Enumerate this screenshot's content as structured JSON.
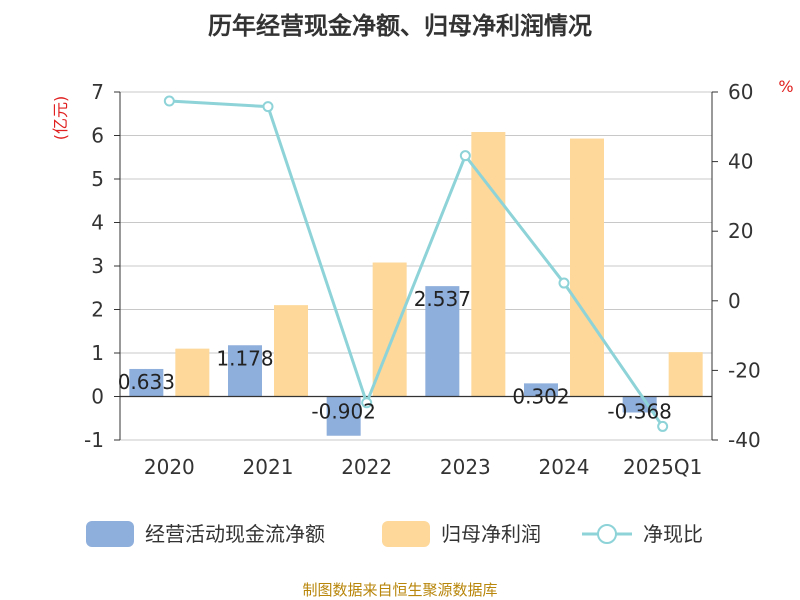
{
  "chart_data": {
    "type": "bar+line",
    "title": "历年经营现金净额、归母净利润情况",
    "categories": [
      "2020",
      "2021",
      "2022",
      "2023",
      "2024",
      "2025Q1"
    ],
    "left_axis": {
      "unit": "(亿元)",
      "ylim": [
        -1,
        7
      ],
      "ticks": [
        "-1",
        "0",
        "1",
        "2",
        "3",
        "4",
        "5",
        "6",
        "7"
      ]
    },
    "right_axis": {
      "unit": "%",
      "ylim": [
        -40,
        60
      ],
      "ticks": [
        "-40",
        "-20",
        "0",
        "20",
        "40",
        "60"
      ]
    },
    "series": [
      {
        "name": "经营活动现金流净额",
        "type": "bar",
        "axis": "left",
        "color": "#8eaedb",
        "values": [
          0.633,
          1.178,
          -0.902,
          2.537,
          0.302,
          -0.368
        ],
        "labels": [
          "0.633",
          "1.178",
          "-0.902",
          "2.537",
          "0.302",
          "-0.368"
        ]
      },
      {
        "name": "归母净利润",
        "type": "bar",
        "axis": "left",
        "color": "#fdd89a",
        "values": [
          1.1,
          2.1,
          3.08,
          6.08,
          5.93,
          1.02
        ]
      },
      {
        "name": "净现比",
        "type": "line",
        "axis": "right",
        "color": "#8dd3d8",
        "values": [
          57.4,
          55.8,
          -29.3,
          41.7,
          5.1,
          -36.1
        ]
      }
    ],
    "legend_position": "bottom",
    "source": "制图数据来自恒生聚源数据库"
  }
}
